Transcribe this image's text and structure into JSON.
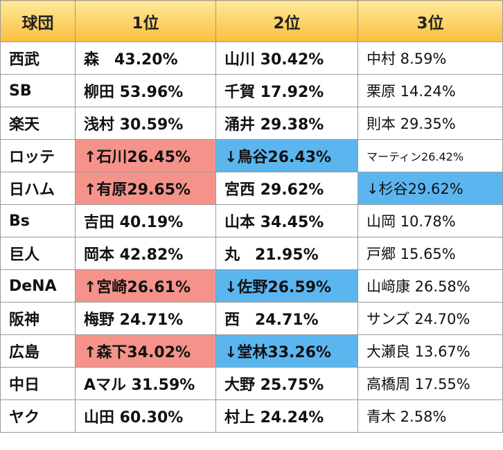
{
  "headers": [
    "球団",
    "1位",
    "2位",
    "3位"
  ],
  "rows": [
    {
      "team": "西武",
      "first": "森　43.20%",
      "second": "山川 30.42%",
      "third": "中村 8.59%"
    },
    {
      "team": "SB",
      "first": "柳田 53.96%",
      "second": "千賀 17.92%",
      "third": "栗原 14.24%"
    },
    {
      "team": "楽天",
      "first": "浅村 30.59%",
      "second": "涌井 29.38%",
      "third": "則本 29.35%"
    },
    {
      "team": "ロッテ",
      "first": "↑石川26.45%",
      "second": "↓鳥谷26.43%",
      "third": "マーティン26.42%"
    },
    {
      "team": "日ハム",
      "first": "↑有原29.65%",
      "second": "宮西 29.62%",
      "third": "↓杉谷29.62%"
    },
    {
      "team": "Bs",
      "first": "吉田 40.19%",
      "second": "山本 34.45%",
      "third": "山岡 10.78%"
    },
    {
      "team": "巨人",
      "first": "岡本 42.82%",
      "second": "丸　21.95%",
      "third": "戸郷 15.65%"
    },
    {
      "team": "DeNA",
      "first": "↑宮崎26.61%",
      "second": "↓佐野26.59%",
      "third": "山﨑康 26.58%"
    },
    {
      "team": "阪神",
      "first": "梅野 24.71%",
      "second": "西　24.71%",
      "third": "サンズ 24.70%"
    },
    {
      "team": "広島",
      "first": "↑森下34.02%",
      "second": "↓堂林33.26%",
      "third": "大瀬良 13.67%"
    },
    {
      "team": "中日",
      "first": "Aマル 31.59%",
      "second": "大野 25.75%",
      "third": "高橋周 17.55%"
    },
    {
      "team": "ヤク",
      "first": "山田 60.30%",
      "second": "村上 24.24%",
      "third": "青木 2.58%"
    }
  ],
  "colors": {
    "header_gradient_top": "#ffe89a",
    "header_gradient_bottom": "#fbbf3c",
    "up_highlight": "#f5938b",
    "down_highlight": "#5bb6f0",
    "border": "#999999"
  }
}
